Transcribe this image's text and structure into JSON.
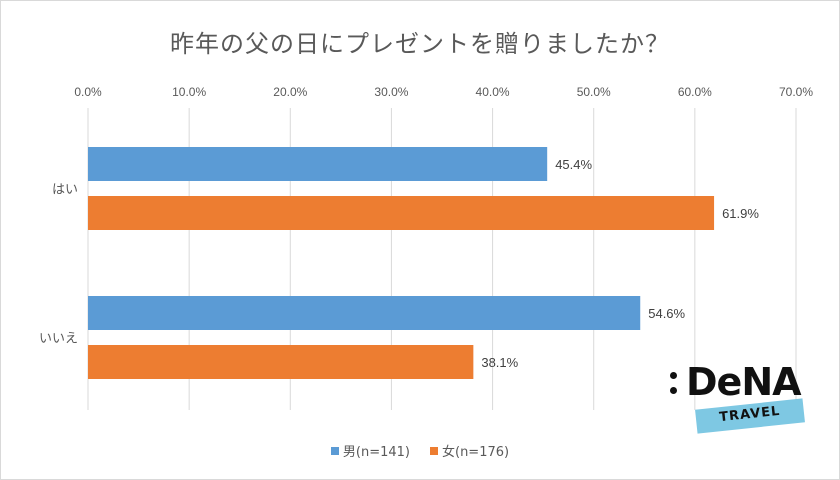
{
  "chart_data": {
    "type": "bar",
    "orientation": "horizontal",
    "title": "昨年の父の日にプレゼントを贈りましたか？",
    "categories": [
      "はい",
      "いいえ"
    ],
    "series": [
      {
        "name": "男(n=141)",
        "values": [
          45.4,
          54.6
        ],
        "labels": [
          "45.4%",
          "54.6%"
        ],
        "color": "#5b9bd5"
      },
      {
        "name": "女(n=176)",
        "values": [
          61.9,
          38.1
        ],
        "labels": [
          "61.9%",
          "38.1%"
        ],
        "color": "#ed7d31"
      }
    ],
    "xlim": [
      0,
      70
    ],
    "xticks": [
      "0.0%",
      "10.0%",
      "20.0%",
      "30.0%",
      "40.0%",
      "50.0%",
      "60.0%",
      "70.0%"
    ],
    "grid": true,
    "legend_position": "bottom"
  },
  "logo": {
    "name": "DeNA",
    "sub": "TRAVEL"
  }
}
